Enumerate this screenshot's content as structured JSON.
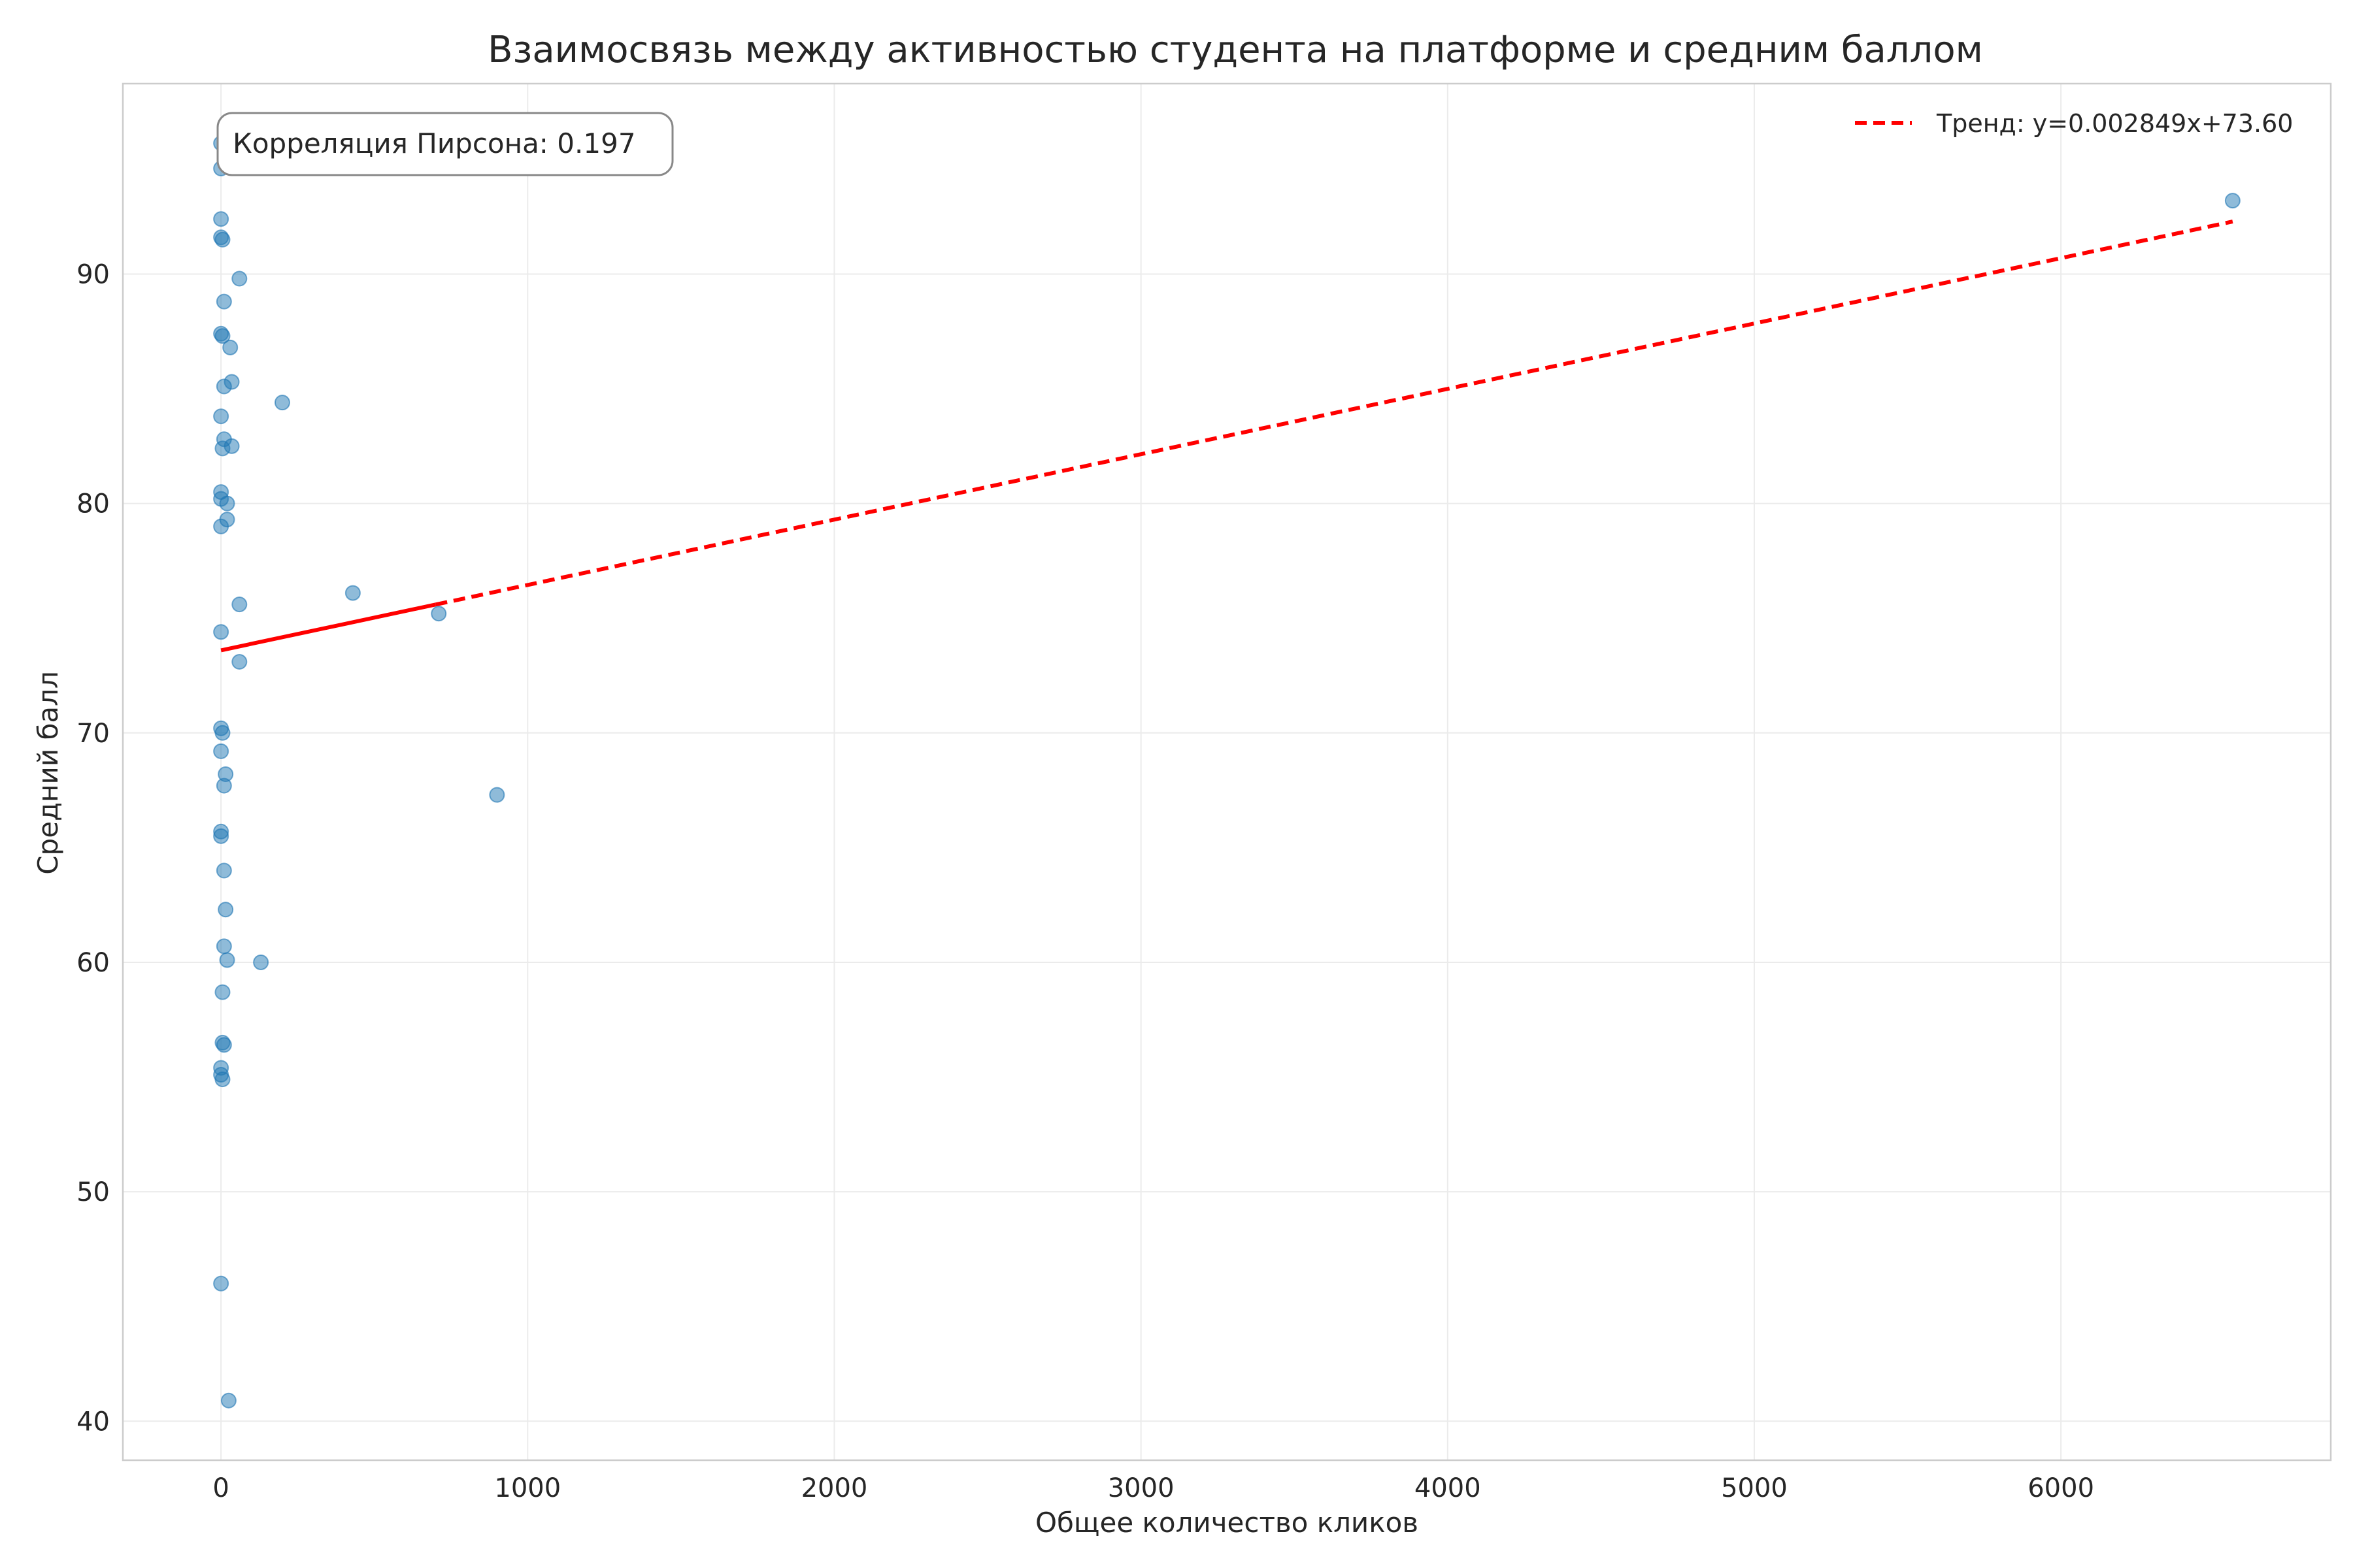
{
  "chart_data": {
    "type": "scatter",
    "title": "Взаимосвязь между активностью студента на платформе и средним баллом",
    "xlabel": "Общее количество кликов",
    "ylabel": "Средний балл",
    "xlim": [
      -320,
      6880
    ],
    "ylim": [
      38.3,
      98.3
    ],
    "xticks": [
      0,
      1000,
      2000,
      3000,
      4000,
      5000,
      6000
    ],
    "yticks": [
      40,
      50,
      60,
      70,
      80,
      90
    ],
    "grid": true,
    "legend_position": "top-right",
    "annotation": "Корреляция Пирсона: 0.197",
    "colors": {
      "points": "#1f77b4",
      "trend": "#ff0000"
    },
    "series": [
      {
        "type": "scatter",
        "points": [
          [
            0,
            95.7
          ],
          [
            0,
            94.6
          ],
          [
            0,
            92.4
          ],
          [
            0,
            91.6
          ],
          [
            5,
            91.5
          ],
          [
            60,
            89.8
          ],
          [
            10,
            88.8
          ],
          [
            0,
            87.4
          ],
          [
            5,
            87.3
          ],
          [
            30,
            86.8
          ],
          [
            35,
            85.3
          ],
          [
            10,
            85.1
          ],
          [
            200,
            84.4
          ],
          [
            0,
            83.8
          ],
          [
            10,
            82.8
          ],
          [
            35,
            82.5
          ],
          [
            5,
            82.4
          ],
          [
            0,
            80.5
          ],
          [
            0,
            80.2
          ],
          [
            20,
            80.0
          ],
          [
            20,
            79.3
          ],
          [
            0,
            79.0
          ],
          [
            430,
            76.1
          ],
          [
            60,
            75.6
          ],
          [
            710,
            75.2
          ],
          [
            0,
            74.4
          ],
          [
            60,
            73.1
          ],
          [
            0,
            70.2
          ],
          [
            5,
            70.0
          ],
          [
            0,
            69.2
          ],
          [
            15,
            68.2
          ],
          [
            10,
            67.7
          ],
          [
            900,
            67.3
          ],
          [
            0,
            65.7
          ],
          [
            0,
            65.5
          ],
          [
            10,
            64.0
          ],
          [
            15,
            62.3
          ],
          [
            10,
            60.7
          ],
          [
            20,
            60.1
          ],
          [
            130,
            60.0
          ],
          [
            5,
            58.7
          ],
          [
            5,
            56.5
          ],
          [
            10,
            56.4
          ],
          [
            0,
            55.4
          ],
          [
            0,
            55.1
          ],
          [
            5,
            54.9
          ],
          [
            0,
            46.0
          ],
          [
            25,
            40.9
          ],
          [
            6560,
            93.2
          ]
        ]
      },
      {
        "type": "line",
        "name": "Тренд: y=0.002849x+73.60",
        "slope": 0.002849,
        "intercept": 73.6,
        "x_range": [
          0,
          6560
        ],
        "solid_until": 700
      }
    ]
  }
}
